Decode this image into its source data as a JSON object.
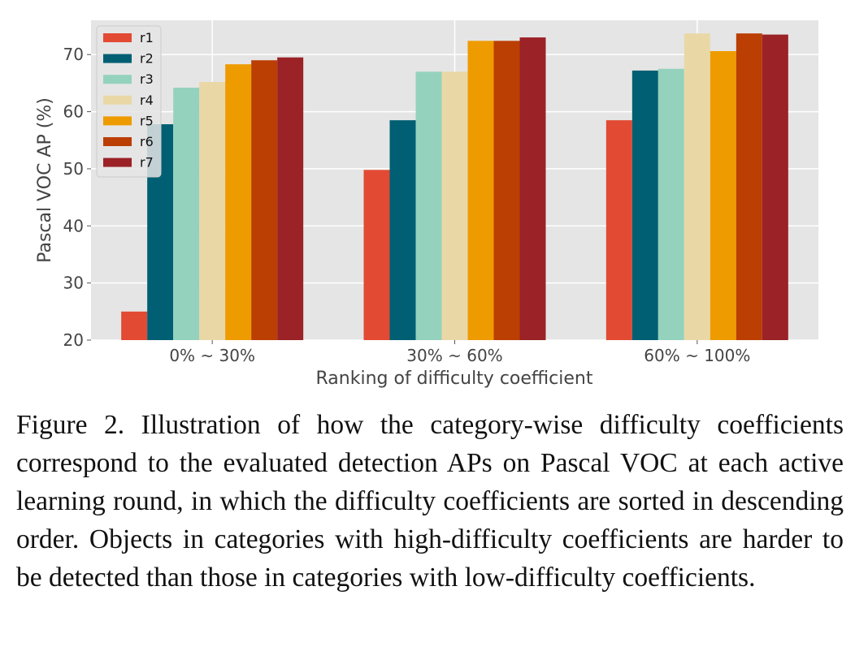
{
  "chart_data": {
    "type": "bar",
    "categories": [
      "0% ~ 30%",
      "30% ~ 60%",
      "60% ~ 100%"
    ],
    "series": [
      {
        "name": "r1",
        "color": "#E24A33",
        "values": [
          25.0,
          49.8,
          58.5
        ]
      },
      {
        "name": "r2",
        "color": "#005F73",
        "values": [
          57.8,
          58.5,
          67.2
        ]
      },
      {
        "name": "r3",
        "color": "#94D2BD",
        "values": [
          64.2,
          67.0,
          67.5
        ]
      },
      {
        "name": "r4",
        "color": "#E9D8A6",
        "values": [
          65.2,
          67.0,
          73.7
        ]
      },
      {
        "name": "r5",
        "color": "#EE9B00",
        "values": [
          68.3,
          72.4,
          70.6
        ]
      },
      {
        "name": "r6",
        "color": "#BB3E03",
        "values": [
          69.0,
          72.4,
          73.7
        ]
      },
      {
        "name": "r7",
        "color": "#9B2226",
        "values": [
          69.5,
          73.0,
          73.5
        ]
      }
    ],
    "xlabel": "Ranking of difficulty coefficient",
    "ylabel": "Pascal VOC AP (%)",
    "ylim": [
      20,
      76
    ],
    "yticks": [
      20,
      30,
      40,
      50,
      60,
      70
    ],
    "grid": true,
    "legend_position": "top-left"
  },
  "caption": "Figure 2.  Illustration of how the category-wise difficulty coefficients correspond to the evaluated detection APs on Pascal VOC at each active learning round, in which the difficulty coefficients are sorted in descending order.  Objects in categories with high-difficulty coefficients are harder to be detected than those in categories with low-difficulty coefficients."
}
